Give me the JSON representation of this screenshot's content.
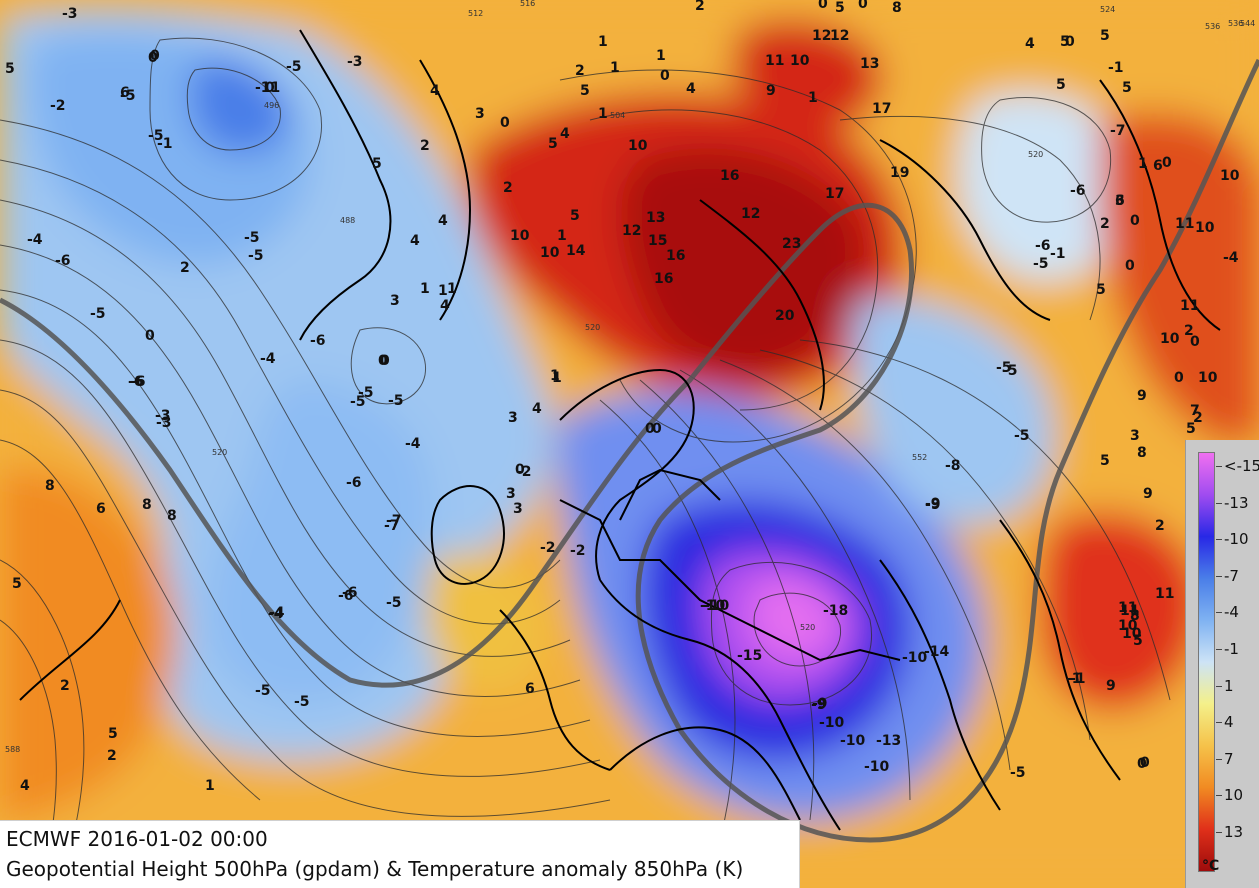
{
  "title": {
    "line1": "ECMWF 2016-01-02 00:00",
    "line2": "Geopotential Height 500hPa (gpdam) & Temperature anomaly 850hPa (K)"
  },
  "legend": {
    "labels": [
      "<-15",
      "-13",
      "-10",
      "-7",
      "-4",
      "-1",
      "1",
      "4",
      "7",
      "10",
      "13"
    ],
    "unit": "°C",
    "colors": [
      "#f070f0",
      "#a04cf0",
      "#2828e6",
      "#4a7ee8",
      "#7fb2f2",
      "#cde3f6",
      "#f4f08a",
      "#f5c24a",
      "#f18b22",
      "#e0301a",
      "#9e0c0c"
    ]
  },
  "contour_labels": [
    "516",
    "524",
    "536",
    "544",
    "520",
    "488",
    "496",
    "504",
    "512",
    "520",
    "520",
    "536",
    "552",
    "520",
    "588"
  ],
  "anomaly_labels": [
    "-3",
    "0",
    "6",
    "5",
    "-2",
    "-5",
    "0",
    "5",
    "0",
    "8",
    "1",
    "2",
    "5",
    "4",
    "3",
    "-11",
    "0",
    "-5",
    "-3",
    "1",
    "2",
    "1",
    "4",
    "0",
    "1",
    "2",
    "5",
    "4",
    "2",
    "0",
    "11",
    "10",
    "9",
    "1",
    "12",
    "12",
    "13",
    "0",
    "4",
    "0",
    "5",
    "5",
    "-1",
    "5",
    "-7",
    "-6",
    "0",
    "3",
    "10",
    "11",
    "10",
    "-4",
    "-1",
    "2",
    "1",
    "4",
    "1",
    "-2",
    "4",
    "5",
    "10",
    "10",
    "16",
    "17",
    "-6",
    "-5",
    "0",
    "5",
    "3",
    "4",
    "10",
    "12",
    "13",
    "15",
    "16",
    "12",
    "23",
    "20",
    "17",
    "-4",
    "-5",
    "-5",
    "0",
    "1",
    "1",
    "3",
    "14",
    "16",
    "19",
    "-1",
    "2",
    "5",
    "4",
    "0",
    "-5",
    "8",
    "6",
    "8",
    "5",
    "8",
    "2",
    "1",
    "5",
    "2",
    "4",
    "-6",
    "-5",
    "-6",
    "-7",
    "-4",
    "-5",
    "-5",
    "-2",
    "0",
    "1",
    "3",
    "-4",
    "-6",
    "-5",
    "-3",
    "-6",
    "-4",
    "-5",
    "-5",
    "-7",
    "-6",
    "-6",
    "-4",
    "3",
    "1",
    "0",
    "-5",
    "-2",
    "-10",
    "-18",
    "-15",
    "-9",
    "-10",
    "-10",
    "-13",
    "-14",
    "-10",
    "-10",
    "-10",
    "-9",
    "-5",
    "-8",
    "-9",
    "-5",
    "0",
    "-5",
    "9",
    "11",
    "10",
    "9",
    "5",
    "2",
    "11",
    "5",
    "-1",
    "11",
    "10",
    "0",
    "7",
    "0",
    "5",
    "6",
    "0",
    "-5",
    "6",
    "1",
    "3",
    "2",
    "0",
    "8",
    "9",
    "10",
    "0",
    "5",
    "-9",
    "0",
    "8",
    "-3",
    "-6",
    "11",
    "10",
    "-1",
    "2",
    "6"
  ]
}
